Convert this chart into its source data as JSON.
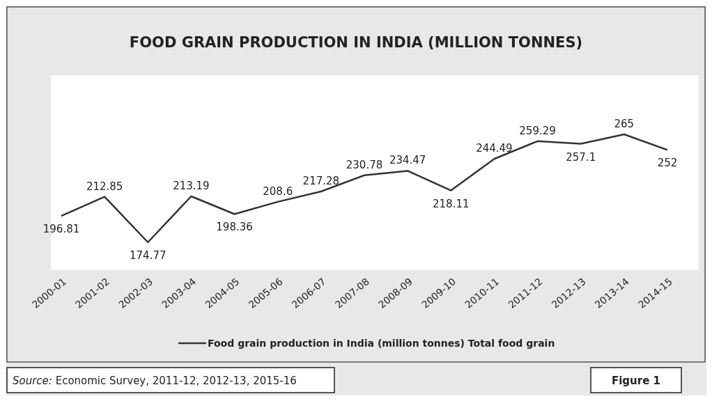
{
  "chart_data": {
    "type": "line",
    "title": "FOOD GRAIN PRODUCTION IN INDIA (MILLION TONNES)",
    "categories": [
      "2000-01",
      "2001-02",
      "2002-03",
      "2003-04",
      "2004-05",
      "2005-06",
      "2006-07",
      "2007-08",
      "2008-09",
      "2009-10",
      "2010-11",
      "2011-12",
      "2012-13",
      "2013-14",
      "2014-15"
    ],
    "series": [
      {
        "name": "Food grain production in India (million tonnes) Total food grain",
        "color": "#333333",
        "values": [
          196.81,
          212.85,
          174.77,
          213.19,
          198.36,
          208.6,
          217.28,
          230.78,
          234.47,
          218.11,
          244.49,
          259.29,
          257.1,
          265,
          252
        ]
      }
    ],
    "data_labels": true,
    "legend": "bottom",
    "annotations": [
      "Source: Economic Survey, 2011-12, 2012-13, 2015-16",
      "Figure 1"
    ]
  }
}
